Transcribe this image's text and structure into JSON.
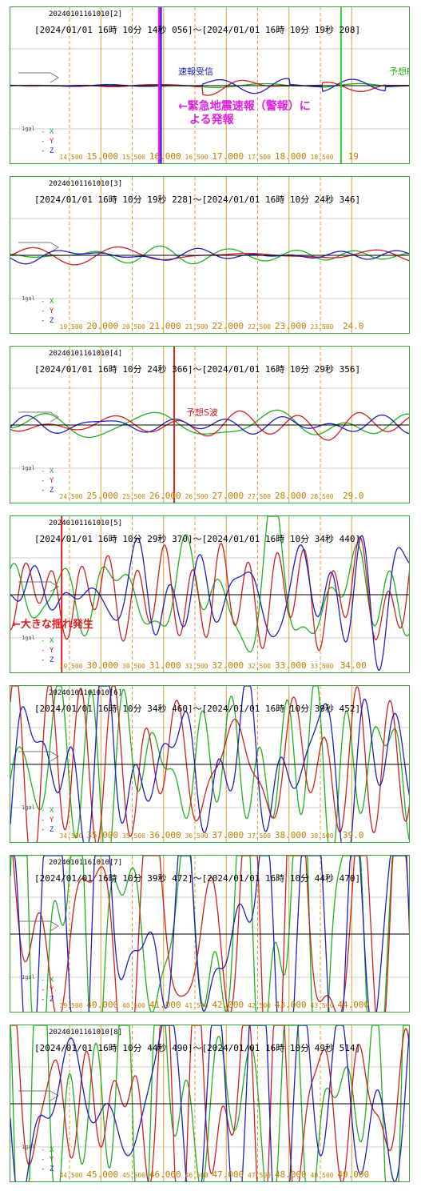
{
  "colors": {
    "x": "#20b020",
    "y": "#d02020",
    "z": "#2020c0",
    "grid_major": "#e0a030",
    "grid_minor": "#e0a030",
    "frame": "#3f9f3f",
    "axis": "#000000"
  },
  "legend": {
    "gal": "1gal",
    "x": "X",
    "y": "Y",
    "z": "Z"
  },
  "panels": [
    {
      "id": "20240101161010[2]",
      "range": "[2024/01/01 16時 10分 14秒 056]～[2024/01/01 16時 10分 19秒 208]",
      "amplitude": 6,
      "seed": 2,
      "ticks": [
        {
          "t": 14.5,
          "label": "14.500",
          "major": false
        },
        {
          "t": 15.0,
          "label": "15.000",
          "major": true
        },
        {
          "t": 15.5,
          "label": "15.500",
          "major": false
        },
        {
          "t": 16.0,
          "label": "16.000",
          "major": true
        },
        {
          "t": 16.5,
          "label": "16.500",
          "major": false
        },
        {
          "t": 17.0,
          "label": "17.000",
          "major": true
        },
        {
          "t": 17.5,
          "label": "17.500",
          "major": false
        },
        {
          "t": 18.0,
          "label": "18.000",
          "major": true
        },
        {
          "t": 18.5,
          "label": "18.500",
          "major": false
        },
        {
          "t": 19.0,
          "label": "19",
          "major": true
        }
      ],
      "markers": [
        {
          "t": 15.93,
          "color": "#e020e0",
          "width": 3
        },
        {
          "t": 15.96,
          "color": "#2020ff",
          "width": 2
        },
        {
          "t": 18.83,
          "color": "#30d030",
          "width": 2
        }
      ],
      "annotations": [
        {
          "text": "速報受信",
          "cls": "ann-blue",
          "x": 210,
          "y": 72
        },
        {
          "text": "予想P",
          "cls": "ann-green",
          "x": 474,
          "y": 72
        },
        {
          "text": "←緊急地震速報（警報）に\n　よる発報",
          "cls": "ann-mag",
          "x": 210,
          "y": 116
        }
      ]
    },
    {
      "id": "20240101161010[3]",
      "range": "[2024/01/01 16時 10分 19秒 228]～[2024/01/01 16時 10分 24秒 346]",
      "amplitude": 9,
      "seed": 3,
      "ticks": [
        {
          "t": 19.5,
          "label": "19.500",
          "major": false
        },
        {
          "t": 20.0,
          "label": "20.000",
          "major": true
        },
        {
          "t": 20.5,
          "label": "20.500",
          "major": false
        },
        {
          "t": 21.0,
          "label": "21.000",
          "major": true
        },
        {
          "t": 21.5,
          "label": "21.500",
          "major": false
        },
        {
          "t": 22.0,
          "label": "22.000",
          "major": true
        },
        {
          "t": 22.5,
          "label": "22.500",
          "major": false
        },
        {
          "t": 23.0,
          "label": "23.000",
          "major": true
        },
        {
          "t": 23.5,
          "label": "23.500",
          "major": false
        },
        {
          "t": 24.0,
          "label": "24.0",
          "major": true
        }
      ],
      "markers": [],
      "annotations": []
    },
    {
      "id": "20240101161010[4]",
      "range": "[2024/01/01 16時 10分 24秒 366]～[2024/01/01 16時 10分 29秒 356]",
      "amplitude": 16,
      "seed": 4,
      "ticks": [
        {
          "t": 24.5,
          "label": "24.500",
          "major": false
        },
        {
          "t": 25.0,
          "label": "25.000",
          "major": true
        },
        {
          "t": 25.5,
          "label": "25.500",
          "major": false
        },
        {
          "t": 26.0,
          "label": "26.000",
          "major": true
        },
        {
          "t": 26.5,
          "label": "26.500",
          "major": false
        },
        {
          "t": 27.0,
          "label": "27.000",
          "major": true
        },
        {
          "t": 27.5,
          "label": "27.500",
          "major": false
        },
        {
          "t": 28.0,
          "label": "28.000",
          "major": true
        },
        {
          "t": 28.5,
          "label": "28.500",
          "major": false
        },
        {
          "t": 29.0,
          "label": "29.0",
          "major": true
        }
      ],
      "markers": [
        {
          "t": 26.17,
          "color": "#e02020",
          "width": 2
        }
      ],
      "annotations": [
        {
          "text": "予想S波",
          "cls": "ann-red",
          "x": 220,
          "y": 74
        }
      ]
    },
    {
      "id": "20240101161010[5]",
      "range": "[2024/01/01 16時 10分 29秒 370]～[2024/01/01 16時 10分 34秒 440]",
      "amplitude": 80,
      "seed": 5,
      "ticks": [
        {
          "t": 29.5,
          "label": "29.500",
          "major": false
        },
        {
          "t": 30.0,
          "label": "30.000",
          "major": true
        },
        {
          "t": 30.5,
          "label": "30.500",
          "major": false
        },
        {
          "t": 31.0,
          "label": "31.000",
          "major": true
        },
        {
          "t": 31.5,
          "label": "31.500",
          "major": false
        },
        {
          "t": 32.0,
          "label": "32.000",
          "major": true
        },
        {
          "t": 32.5,
          "label": "32.500",
          "major": false
        },
        {
          "t": 33.0,
          "label": "33.000",
          "major": true
        },
        {
          "t": 33.5,
          "label": "33.500",
          "major": false
        },
        {
          "t": 34.0,
          "label": "34.00",
          "major": true
        }
      ],
      "markers": [
        {
          "t": 29.375,
          "color": "#e02020",
          "width": 2
        }
      ],
      "annotations": [
        {
          "text": "←大きな揺れ発生",
          "cls": "ann-bigred",
          "x": 2,
          "y": 124
        }
      ]
    },
    {
      "id": "20240101161010[6]",
      "range": "[2024/01/01 16時 10分 34秒 460]～[2024/01/01 16時 10分 39秒 452]",
      "amplitude": 120,
      "seed": 6,
      "ticks": [
        {
          "t": 34.5,
          "label": "34.500",
          "major": false
        },
        {
          "t": 35.0,
          "label": "35.000",
          "major": true
        },
        {
          "t": 35.5,
          "label": "35.500",
          "major": false
        },
        {
          "t": 36.0,
          "label": "36.000",
          "major": true
        },
        {
          "t": 36.5,
          "label": "36.500",
          "major": false
        },
        {
          "t": 37.0,
          "label": "37.000",
          "major": true
        },
        {
          "t": 37.5,
          "label": "37.500",
          "major": false
        },
        {
          "t": 38.0,
          "label": "38.000",
          "major": true
        },
        {
          "t": 38.5,
          "label": "38.500",
          "major": false
        },
        {
          "t": 39.0,
          "label": "39.0",
          "major": true
        }
      ],
      "markers": [],
      "annotations": []
    },
    {
      "id": "20240101161010[7]",
      "range": "[2024/01/01 16時 10分 39秒 472]～[2024/01/01 16時 10分 44秒 470]",
      "amplitude": 200,
      "seed": 7,
      "ticks": [
        {
          "t": 39.5,
          "label": "39.500",
          "major": false
        },
        {
          "t": 40.0,
          "label": "40.000",
          "major": true
        },
        {
          "t": 40.5,
          "label": "40.500",
          "major": false
        },
        {
          "t": 41.0,
          "label": "41.000",
          "major": true
        },
        {
          "t": 41.5,
          "label": "41.500",
          "major": false
        },
        {
          "t": 42.0,
          "label": "42.000",
          "major": true
        },
        {
          "t": 42.5,
          "label": "42.500",
          "major": false
        },
        {
          "t": 43.0,
          "label": "43.000",
          "major": true
        },
        {
          "t": 43.5,
          "label": "43.500",
          "major": false
        },
        {
          "t": 44.0,
          "label": "44.000",
          "major": true
        }
      ],
      "markers": [],
      "annotations": []
    },
    {
      "id": "20240101161010[8]",
      "range": "[2024/01/01 16時 10分 44秒 490]～[2024/01/01 16時 10分 49秒 514]",
      "amplitude": 220,
      "seed": 8,
      "ticks": [
        {
          "t": 44.5,
          "label": "44.500",
          "major": false
        },
        {
          "t": 45.0,
          "label": "45.000",
          "major": true
        },
        {
          "t": 45.5,
          "label": "45.500",
          "major": false
        },
        {
          "t": 46.0,
          "label": "46.000",
          "major": true
        },
        {
          "t": 46.5,
          "label": "46.500",
          "major": false
        },
        {
          "t": 47.0,
          "label": "47.000",
          "major": true
        },
        {
          "t": 47.5,
          "label": "47.500",
          "major": false
        },
        {
          "t": 48.0,
          "label": "48.000",
          "major": true
        },
        {
          "t": 48.5,
          "label": "48.500",
          "major": false
        },
        {
          "t": 49.0,
          "label": "49.000",
          "major": true
        }
      ],
      "markers": [],
      "annotations": []
    }
  ],
  "chart_data": [
    {
      "type": "line",
      "title": "20240101161010[2]",
      "series": [
        {
          "name": "X"
        },
        {
          "name": "Y"
        },
        {
          "name": "Z"
        }
      ],
      "xlim": [
        14.056,
        19.208
      ],
      "grid": true
    },
    {
      "type": "line",
      "title": "20240101161010[3]",
      "series": [
        {
          "name": "X"
        },
        {
          "name": "Y"
        },
        {
          "name": "Z"
        }
      ],
      "xlim": [
        19.228,
        24.346
      ],
      "grid": true
    },
    {
      "type": "line",
      "title": "20240101161010[4]",
      "series": [
        {
          "name": "X"
        },
        {
          "name": "Y"
        },
        {
          "name": "Z"
        }
      ],
      "xlim": [
        24.366,
        29.356
      ],
      "grid": true
    },
    {
      "type": "line",
      "title": "20240101161010[5]",
      "series": [
        {
          "name": "X"
        },
        {
          "name": "Y"
        },
        {
          "name": "Z"
        }
      ],
      "xlim": [
        29.37,
        34.44
      ],
      "grid": true
    },
    {
      "type": "line",
      "title": "20240101161010[6]",
      "series": [
        {
          "name": "X"
        },
        {
          "name": "Y"
        },
        {
          "name": "Z"
        }
      ],
      "xlim": [
        34.46,
        39.452
      ],
      "grid": true
    },
    {
      "type": "line",
      "title": "20240101161010[7]",
      "series": [
        {
          "name": "X"
        },
        {
          "name": "Y"
        },
        {
          "name": "Z"
        }
      ],
      "xlim": [
        39.472,
        44.47
      ],
      "grid": true
    },
    {
      "type": "line",
      "title": "20240101161010[8]",
      "series": [
        {
          "name": "X"
        },
        {
          "name": "Y"
        },
        {
          "name": "Z"
        }
      ],
      "xlim": [
        44.49,
        49.514
      ],
      "grid": true
    }
  ]
}
